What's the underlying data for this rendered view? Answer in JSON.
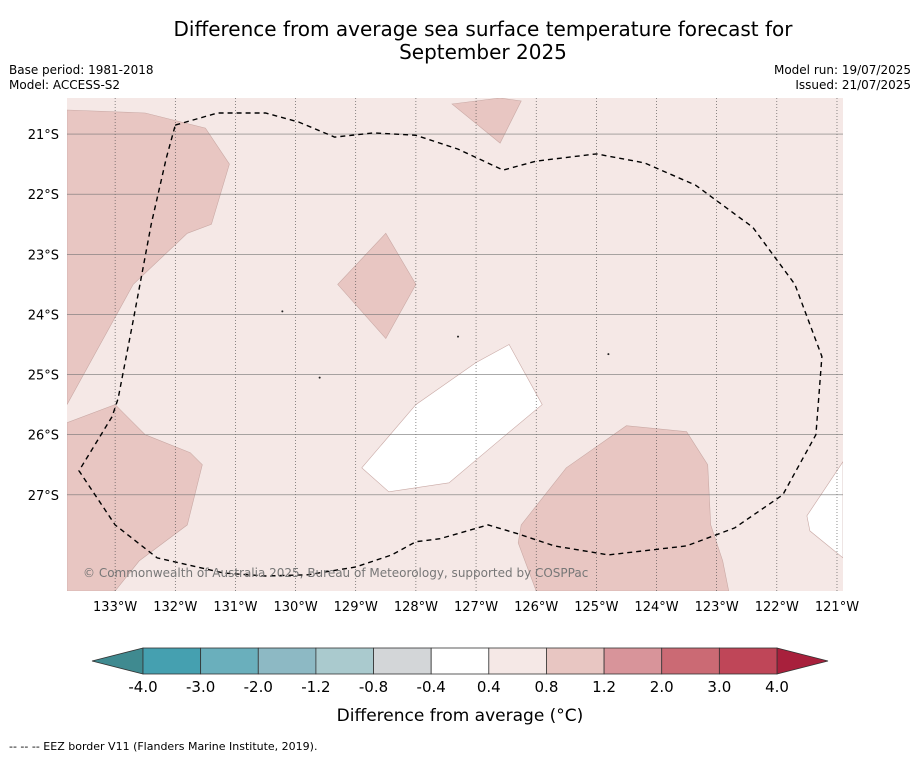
{
  "title_line1": "Difference from average sea surface temperature forecast for",
  "title_line2": "September 2025",
  "base_period": "Base period: 1981-2018",
  "model": "Model: ACCESS-S2",
  "model_run": "Model run: 19/07/2025",
  "issued": "Issued: 21/07/2025",
  "copyright": "© Commonwealth of Australia 2025, Bureau of Meteorology, supported by COSPPac",
  "footer_note": "--  --  -- EEZ border V11 (Flanders Marine Institute, 2019).",
  "map": {
    "lon_range": [
      -133.8,
      -120.9
    ],
    "lat_range": [
      -28.6,
      -20.4
    ],
    "lon_ticks": [
      {
        "value": -133,
        "label": "133°W"
      },
      {
        "value": -132,
        "label": "132°W"
      },
      {
        "value": -131,
        "label": "131°W"
      },
      {
        "value": -130,
        "label": "130°W"
      },
      {
        "value": -129,
        "label": "129°W"
      },
      {
        "value": -128,
        "label": "128°W"
      },
      {
        "value": -127,
        "label": "127°W"
      },
      {
        "value": -126,
        "label": "126°W"
      },
      {
        "value": -125,
        "label": "125°W"
      },
      {
        "value": -124,
        "label": "124°W"
      },
      {
        "value": -123,
        "label": "123°W"
      },
      {
        "value": -122,
        "label": "122°W"
      },
      {
        "value": -121,
        "label": "121°W"
      }
    ],
    "lat_ticks": [
      {
        "value": -21,
        "label": "21°S"
      },
      {
        "value": -22,
        "label": "22°S"
      },
      {
        "value": -23,
        "label": "23°S"
      },
      {
        "value": -24,
        "label": "24°S"
      },
      {
        "value": -25,
        "label": "25°S"
      },
      {
        "value": -26,
        "label": "26°S"
      },
      {
        "value": -27,
        "label": "27°S"
      }
    ],
    "background_color": "#f5e8e6",
    "regions": [
      {
        "category": "0.8 to 1.2",
        "color": "#e8c6c2",
        "points": [
          [
            -133.8,
            -20.6
          ],
          [
            -132.5,
            -20.65
          ],
          [
            -131.5,
            -20.9
          ],
          [
            -131.1,
            -21.5
          ],
          [
            -131.4,
            -22.5
          ],
          [
            -131.8,
            -22.65
          ],
          [
            -132.7,
            -23.5
          ],
          [
            -133.8,
            -25.5
          ]
        ]
      },
      {
        "category": "0.8 to 1.2",
        "color": "#e8c6c2",
        "points": [
          [
            -133.8,
            -25.8
          ],
          [
            -133.0,
            -25.5
          ],
          [
            -132.5,
            -26.0
          ],
          [
            -131.75,
            -26.3
          ],
          [
            -131.55,
            -26.5
          ],
          [
            -131.8,
            -27.5
          ],
          [
            -132.6,
            -28.1
          ],
          [
            -133.0,
            -28.6
          ],
          [
            -133.8,
            -28.6
          ]
        ]
      },
      {
        "category": "0.8 to 1.2",
        "color": "#e8c6c2",
        "points": [
          [
            -128.5,
            -22.65
          ],
          [
            -128.0,
            -23.5
          ],
          [
            -128.5,
            -24.4
          ],
          [
            -129.3,
            -23.5
          ]
        ]
      },
      {
        "category": "0.8 to 1.2",
        "color": "#e8c6c2",
        "points": [
          [
            -127.4,
            -20.5
          ],
          [
            -126.6,
            -20.4
          ],
          [
            -126.25,
            -20.45
          ],
          [
            -126.6,
            -21.15
          ]
        ]
      },
      {
        "category": "0.8 to 1.2",
        "color": "#e8c6c2",
        "points": [
          [
            -126.25,
            -27.5
          ],
          [
            -125.5,
            -26.55
          ],
          [
            -124.5,
            -25.85
          ],
          [
            -123.5,
            -25.95
          ],
          [
            -123.15,
            -26.5
          ],
          [
            -123.1,
            -27.5
          ],
          [
            -122.9,
            -28.1
          ],
          [
            -122.8,
            -28.6
          ],
          [
            -126.0,
            -28.6
          ],
          [
            -126.3,
            -27.8
          ]
        ]
      },
      {
        "category": "-0.4 to 0.4",
        "color": "#ffffff",
        "points": [
          [
            -128.9,
            -26.55
          ],
          [
            -128.0,
            -25.5
          ],
          [
            -127.0,
            -24.8
          ],
          [
            -126.45,
            -24.5
          ],
          [
            -125.9,
            -25.5
          ],
          [
            -126.5,
            -26.0
          ],
          [
            -127.45,
            -26.8
          ],
          [
            -128.45,
            -26.95
          ]
        ]
      },
      {
        "category": "-0.4 to 0.4",
        "color": "#ffffff",
        "points": [
          [
            -120.9,
            -26.45
          ],
          [
            -121.5,
            -27.35
          ],
          [
            -121.45,
            -27.6
          ],
          [
            -120.9,
            -28.05
          ]
        ]
      }
    ],
    "eez_border": [
      [
        -132.0,
        -20.85
      ],
      [
        -131.3,
        -20.65
      ],
      [
        -130.5,
        -20.65
      ],
      [
        -129.95,
        -20.8
      ],
      [
        -129.35,
        -21.05
      ],
      [
        -128.7,
        -20.98
      ],
      [
        -128.0,
        -21.02
      ],
      [
        -127.3,
        -21.25
      ],
      [
        -126.55,
        -21.6
      ],
      [
        -126.0,
        -21.45
      ],
      [
        -125.0,
        -21.33
      ],
      [
        -124.2,
        -21.48
      ],
      [
        -123.35,
        -21.85
      ],
      [
        -122.4,
        -22.55
      ],
      [
        -121.7,
        -23.5
      ],
      [
        -121.25,
        -24.7
      ],
      [
        -121.35,
        -26.0
      ],
      [
        -121.9,
        -27.0
      ],
      [
        -122.7,
        -27.55
      ],
      [
        -123.5,
        -27.85
      ],
      [
        -124.8,
        -28.0
      ],
      [
        -125.7,
        -27.85
      ],
      [
        -126.3,
        -27.65
      ],
      [
        -126.8,
        -27.5
      ],
      [
        -127.6,
        -27.73
      ],
      [
        -128.0,
        -27.78
      ],
      [
        -128.4,
        -28.0
      ],
      [
        -129.0,
        -28.2
      ],
      [
        -129.8,
        -28.33
      ],
      [
        -130.5,
        -28.35
      ],
      [
        -131.2,
        -28.3
      ],
      [
        -132.3,
        -28.05
      ],
      [
        -133.0,
        -27.5
      ],
      [
        -133.6,
        -26.6
      ],
      [
        -133.05,
        -25.7
      ],
      [
        -132.95,
        -25.4
      ],
      [
        -132.7,
        -24.1
      ],
      [
        -132.4,
        -22.5
      ],
      [
        -132.15,
        -21.4
      ]
    ],
    "islands": [
      [
        -130.22,
        -23.95
      ],
      [
        -129.6,
        -25.05
      ],
      [
        -127.3,
        -24.37
      ],
      [
        -124.8,
        -24.66
      ]
    ]
  },
  "colorbar": {
    "ticks": [
      "-4.0",
      "-3.0",
      "-2.0",
      "-1.2",
      "-0.8",
      "-0.4",
      "0.4",
      "0.8",
      "1.2",
      "2.0",
      "3.0",
      "4.0"
    ],
    "under_color": "#3f8a90",
    "over_color": "#a8203c",
    "colors": [
      "#45a0b0",
      "#6aafbc",
      "#8db9c4",
      "#aacace",
      "#d3d6d8",
      "#ffffff",
      "#f5e8e6",
      "#e8c6c2",
      "#d8949a",
      "#cb6a74",
      "#bf4658"
    ],
    "label": "Difference from average (°C)"
  }
}
